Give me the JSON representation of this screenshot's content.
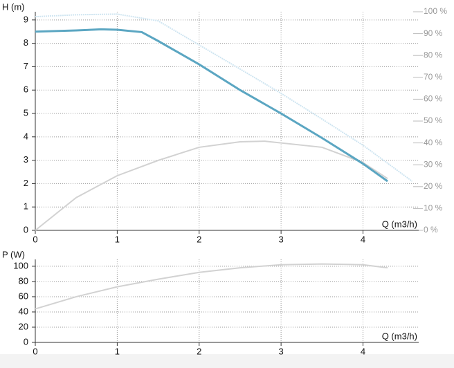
{
  "chart_data": [
    {
      "type": "line",
      "ylabel": "H (m)",
      "xlabel": "Q (m3/h)",
      "xlim": [
        0,
        4.68
      ],
      "xticks": [
        0,
        1,
        2,
        3,
        4
      ],
      "ylim": [
        0,
        9.35
      ],
      "yticks": [
        0,
        1,
        2,
        3,
        4,
        5,
        6,
        7,
        8,
        9
      ],
      "y2lim": [
        0,
        100
      ],
      "y2ticks": [
        {
          "value": 0,
          "label": "0 %"
        },
        {
          "value": 10,
          "label": "10 %"
        },
        {
          "value": 20,
          "label": "20 %"
        },
        {
          "value": 30,
          "label": "30 %"
        },
        {
          "value": 40,
          "label": "40 %"
        },
        {
          "value": 50,
          "label": "50 %"
        },
        {
          "value": 60,
          "label": "60 %"
        },
        {
          "value": 70,
          "label": "70 %"
        },
        {
          "value": 80,
          "label": "80 %"
        },
        {
          "value": 90,
          "label": "90 %"
        },
        {
          "value": 100,
          "label": "100 %"
        }
      ],
      "grid": true,
      "series": [
        {
          "color": "#cfe5f1",
          "style": "dotted",
          "x": [
            0,
            0.5,
            1.0,
            1.5,
            2,
            2.5,
            3,
            3.5,
            4,
            4.6
          ],
          "values": [
            9.14,
            9.22,
            9.25,
            8.96,
            7.93,
            6.9,
            5.86,
            4.76,
            3.64,
            2.1
          ]
        },
        {
          "color": "#d2d2d2",
          "axis": "y2",
          "x": [
            0,
            0.5,
            1,
            1.5,
            2,
            2.5,
            2.8,
            3.5,
            4,
            4.3
          ],
          "values": [
            0,
            15,
            25,
            32,
            38,
            40.5,
            40.8,
            38,
            31,
            23.7
          ]
        },
        {
          "color": "#5ba6c2",
          "width": 3,
          "x": [
            0,
            0.5,
            0.8,
            1.0,
            1.3,
            1.5,
            2.0,
            2.5,
            3.0,
            3.5,
            4.0,
            4.3
          ],
          "values": [
            8.5,
            8.55,
            8.6,
            8.58,
            8.48,
            8.1,
            7.1,
            6.0,
            5.0,
            3.95,
            2.85,
            2.1
          ]
        }
      ]
    },
    {
      "type": "line",
      "ylabel": "P (W)",
      "xlabel": "Q (m3/h)",
      "xlim": [
        0,
        4.68
      ],
      "xticks": [
        0,
        1,
        2,
        3,
        4
      ],
      "ylim": [
        0,
        109
      ],
      "yticks": [
        0,
        20,
        40,
        60,
        80,
        100
      ],
      "grid": true,
      "series": [
        {
          "color": "#d2d2d2",
          "x": [
            0,
            0.5,
            1,
            1.5,
            2,
            2.5,
            3,
            3.5,
            4,
            4.3
          ],
          "values": [
            44,
            60,
            73,
            83,
            92,
            98,
            102,
            103,
            102,
            98
          ]
        }
      ]
    }
  ]
}
